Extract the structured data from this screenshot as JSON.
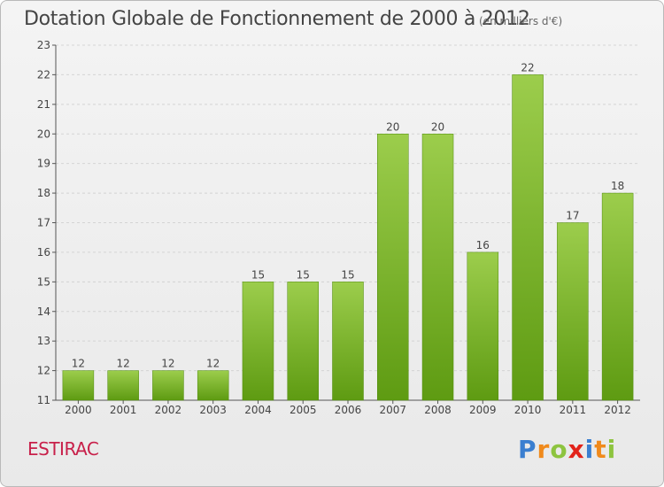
{
  "header": {
    "title": "Dotation Globale de Fonctionnement de 2000 à 2012",
    "subtitle": "(en milliers d'€)"
  },
  "footer": {
    "commune": "ESTIRAC",
    "logo": "Proxiti"
  },
  "logo_letters": [
    {
      "ch": "P",
      "color": "#3b7fd0"
    },
    {
      "ch": "r",
      "color": "#f08a1c"
    },
    {
      "ch": "o",
      "color": "#8dc43f"
    },
    {
      "ch": "x",
      "color": "#e2231a"
    },
    {
      "ch": "i",
      "color": "#3b7fd0"
    },
    {
      "ch": "t",
      "color": "#f08a1c"
    },
    {
      "ch": "i",
      "color": "#8dc43f"
    }
  ],
  "chart_data": {
    "type": "bar",
    "title": "Dotation Globale de Fonctionnement de 2000 à 2012",
    "subtitle": "(en milliers d'€)",
    "categories": [
      "2000",
      "2001",
      "2002",
      "2003",
      "2004",
      "2005",
      "2006",
      "2007",
      "2008",
      "2009",
      "2010",
      "2011",
      "2012"
    ],
    "values": [
      12,
      12,
      12,
      12,
      15,
      15,
      15,
      20,
      20,
      16,
      22,
      17,
      18
    ],
    "ylim": [
      11,
      23
    ],
    "yticks": [
      11,
      12,
      13,
      14,
      15,
      16,
      17,
      18,
      19,
      20,
      21,
      22,
      23
    ],
    "grid": true,
    "bar_color_top": "#9ccd4c",
    "bar_color_bottom": "#5e9b12"
  }
}
